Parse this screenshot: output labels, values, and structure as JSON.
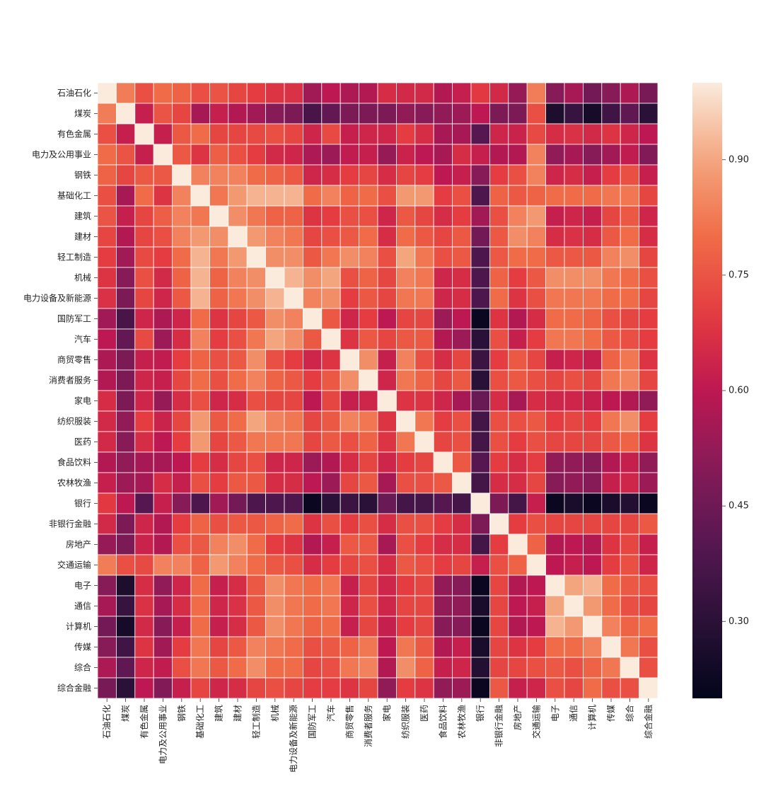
{
  "chart_data": {
    "type": "heatmap",
    "title": "",
    "xlabel": "",
    "ylabel": "",
    "labels": [
      "石油石化",
      "煤炭",
      "有色金属",
      "电力及公用事业",
      "钢铁",
      "基础化工",
      "建筑",
      "建材",
      "轻工制造",
      "机械",
      "电力设备及新能源",
      "国防军工",
      "汽车",
      "商贸零售",
      "消费者服务",
      "家电",
      "纺织服装",
      "医药",
      "食品饮料",
      "农林牧渔",
      "银行",
      "非银行金融",
      "房地产",
      "交通运输",
      "电子",
      "通信",
      "计算机",
      "传媒",
      "综合",
      "综合金融"
    ],
    "values": [
      [
        1.0,
        0.83,
        0.74,
        0.8,
        0.78,
        0.74,
        0.75,
        0.72,
        0.7,
        0.68,
        0.67,
        0.55,
        0.6,
        0.57,
        0.58,
        0.66,
        0.65,
        0.65,
        0.58,
        0.62,
        0.69,
        0.65,
        0.53,
        0.83,
        0.5,
        0.56,
        0.46,
        0.5,
        0.57,
        0.47
      ],
      [
        0.83,
        1.0,
        0.62,
        0.75,
        0.72,
        0.56,
        0.62,
        0.58,
        0.55,
        0.5,
        0.48,
        0.37,
        0.43,
        0.48,
        0.48,
        0.48,
        0.52,
        0.5,
        0.52,
        0.54,
        0.6,
        0.48,
        0.48,
        0.74,
        0.27,
        0.33,
        0.25,
        0.35,
        0.42,
        0.3
      ],
      [
        0.74,
        0.62,
        1.0,
        0.62,
        0.76,
        0.8,
        0.72,
        0.72,
        0.73,
        0.74,
        0.72,
        0.64,
        0.73,
        0.62,
        0.64,
        0.64,
        0.7,
        0.66,
        0.56,
        0.56,
        0.4,
        0.64,
        0.63,
        0.73,
        0.66,
        0.67,
        0.65,
        0.68,
        0.64,
        0.6
      ],
      [
        0.8,
        0.75,
        0.62,
        1.0,
        0.76,
        0.68,
        0.77,
        0.74,
        0.7,
        0.65,
        0.64,
        0.57,
        0.54,
        0.61,
        0.62,
        0.53,
        0.63,
        0.6,
        0.56,
        0.66,
        0.62,
        0.58,
        0.58,
        0.84,
        0.52,
        0.56,
        0.5,
        0.55,
        0.61,
        0.49
      ],
      [
        0.78,
        0.72,
        0.76,
        0.76,
        1.0,
        0.84,
        0.84,
        0.84,
        0.8,
        0.78,
        0.76,
        0.64,
        0.66,
        0.7,
        0.72,
        0.66,
        0.72,
        0.7,
        0.6,
        0.62,
        0.5,
        0.7,
        0.74,
        0.84,
        0.64,
        0.66,
        0.62,
        0.7,
        0.74,
        0.62
      ],
      [
        0.74,
        0.56,
        0.8,
        0.68,
        0.84,
        1.0,
        0.82,
        0.88,
        0.92,
        0.92,
        0.92,
        0.8,
        0.84,
        0.78,
        0.8,
        0.74,
        0.88,
        0.88,
        0.7,
        0.74,
        0.38,
        0.78,
        0.76,
        0.78,
        0.8,
        0.8,
        0.8,
        0.82,
        0.82,
        0.72
      ],
      [
        0.75,
        0.62,
        0.72,
        0.77,
        0.84,
        0.82,
        1.0,
        0.86,
        0.82,
        0.78,
        0.78,
        0.68,
        0.7,
        0.74,
        0.74,
        0.64,
        0.76,
        0.72,
        0.66,
        0.7,
        0.55,
        0.74,
        0.84,
        0.88,
        0.62,
        0.64,
        0.62,
        0.72,
        0.76,
        0.64
      ],
      [
        0.72,
        0.58,
        0.72,
        0.74,
        0.84,
        0.88,
        0.86,
        1.0,
        0.88,
        0.84,
        0.82,
        0.72,
        0.74,
        0.76,
        0.8,
        0.66,
        0.8,
        0.76,
        0.72,
        0.76,
        0.46,
        0.76,
        0.86,
        0.84,
        0.66,
        0.67,
        0.66,
        0.76,
        0.8,
        0.66
      ],
      [
        0.7,
        0.55,
        0.73,
        0.7,
        0.8,
        0.92,
        0.82,
        0.88,
        1.0,
        0.86,
        0.86,
        0.76,
        0.82,
        0.86,
        0.84,
        0.74,
        0.9,
        0.82,
        0.74,
        0.76,
        0.38,
        0.76,
        0.8,
        0.8,
        0.76,
        0.76,
        0.76,
        0.84,
        0.86,
        0.72
      ],
      [
        0.68,
        0.5,
        0.74,
        0.65,
        0.78,
        0.92,
        0.78,
        0.84,
        0.86,
        1.0,
        0.92,
        0.86,
        0.9,
        0.74,
        0.78,
        0.72,
        0.84,
        0.82,
        0.64,
        0.66,
        0.38,
        0.78,
        0.7,
        0.76,
        0.86,
        0.86,
        0.86,
        0.82,
        0.8,
        0.74
      ],
      [
        0.67,
        0.48,
        0.72,
        0.64,
        0.76,
        0.92,
        0.78,
        0.82,
        0.86,
        0.92,
        1.0,
        0.84,
        0.86,
        0.7,
        0.76,
        0.72,
        0.82,
        0.82,
        0.64,
        0.66,
        0.38,
        0.8,
        0.68,
        0.74,
        0.82,
        0.82,
        0.82,
        0.8,
        0.8,
        0.72
      ],
      [
        0.55,
        0.37,
        0.64,
        0.57,
        0.64,
        0.8,
        0.68,
        0.72,
        0.76,
        0.86,
        0.84,
        1.0,
        0.76,
        0.64,
        0.7,
        0.6,
        0.72,
        0.72,
        0.54,
        0.6,
        0.22,
        0.68,
        0.58,
        0.66,
        0.8,
        0.8,
        0.78,
        0.74,
        0.72,
        0.7
      ],
      [
        0.6,
        0.43,
        0.73,
        0.54,
        0.66,
        0.84,
        0.7,
        0.74,
        0.82,
        0.9,
        0.86,
        0.76,
        1.0,
        0.68,
        0.76,
        0.72,
        0.76,
        0.76,
        0.58,
        0.54,
        0.3,
        0.74,
        0.62,
        0.7,
        0.82,
        0.82,
        0.8,
        0.76,
        0.74,
        0.7
      ],
      [
        0.57,
        0.48,
        0.62,
        0.61,
        0.7,
        0.78,
        0.74,
        0.76,
        0.86,
        0.74,
        0.7,
        0.64,
        0.68,
        1.0,
        0.86,
        0.62,
        0.84,
        0.74,
        0.66,
        0.72,
        0.34,
        0.7,
        0.76,
        0.72,
        0.62,
        0.64,
        0.62,
        0.78,
        0.82,
        0.68
      ],
      [
        0.58,
        0.48,
        0.64,
        0.62,
        0.72,
        0.8,
        0.74,
        0.8,
        0.84,
        0.78,
        0.76,
        0.7,
        0.76,
        0.86,
        1.0,
        0.64,
        0.82,
        0.78,
        0.72,
        0.76,
        0.3,
        0.74,
        0.76,
        0.74,
        0.72,
        0.74,
        0.72,
        0.82,
        0.84,
        0.72
      ],
      [
        0.66,
        0.48,
        0.64,
        0.53,
        0.66,
        0.74,
        0.64,
        0.66,
        0.74,
        0.72,
        0.72,
        0.6,
        0.72,
        0.62,
        0.64,
        1.0,
        0.68,
        0.68,
        0.64,
        0.56,
        0.44,
        0.66,
        0.56,
        0.66,
        0.64,
        0.64,
        0.62,
        0.6,
        0.58,
        0.52
      ],
      [
        0.65,
        0.52,
        0.7,
        0.63,
        0.72,
        0.88,
        0.76,
        0.8,
        0.9,
        0.84,
        0.82,
        0.72,
        0.76,
        0.84,
        0.82,
        0.68,
        1.0,
        0.82,
        0.7,
        0.74,
        0.36,
        0.74,
        0.74,
        0.76,
        0.7,
        0.72,
        0.7,
        0.82,
        0.86,
        0.7
      ],
      [
        0.65,
        0.5,
        0.66,
        0.6,
        0.7,
        0.88,
        0.72,
        0.76,
        0.82,
        0.82,
        0.82,
        0.72,
        0.76,
        0.74,
        0.78,
        0.68,
        0.82,
        1.0,
        0.72,
        0.74,
        0.36,
        0.74,
        0.7,
        0.74,
        0.72,
        0.72,
        0.72,
        0.76,
        0.78,
        0.68
      ],
      [
        0.58,
        0.52,
        0.56,
        0.56,
        0.6,
        0.7,
        0.66,
        0.72,
        0.74,
        0.64,
        0.64,
        0.54,
        0.58,
        0.66,
        0.72,
        0.64,
        0.7,
        0.72,
        1.0,
        0.76,
        0.4,
        0.7,
        0.66,
        0.7,
        0.52,
        0.52,
        0.5,
        0.58,
        0.62,
        0.52
      ],
      [
        0.62,
        0.54,
        0.56,
        0.66,
        0.62,
        0.74,
        0.7,
        0.76,
        0.76,
        0.66,
        0.66,
        0.6,
        0.54,
        0.72,
        0.76,
        0.56,
        0.74,
        0.74,
        0.76,
        1.0,
        0.36,
        0.66,
        0.66,
        0.72,
        0.5,
        0.52,
        0.5,
        0.62,
        0.64,
        0.54
      ],
      [
        0.69,
        0.6,
        0.4,
        0.62,
        0.5,
        0.38,
        0.55,
        0.46,
        0.38,
        0.38,
        0.38,
        0.22,
        0.3,
        0.34,
        0.3,
        0.44,
        0.36,
        0.36,
        0.4,
        0.36,
        1.0,
        0.48,
        0.36,
        0.62,
        0.22,
        0.26,
        0.22,
        0.26,
        0.28,
        0.22
      ],
      [
        0.65,
        0.48,
        0.64,
        0.58,
        0.7,
        0.78,
        0.74,
        0.76,
        0.76,
        0.78,
        0.8,
        0.68,
        0.74,
        0.7,
        0.74,
        0.66,
        0.74,
        0.74,
        0.7,
        0.66,
        0.48,
        1.0,
        0.7,
        0.74,
        0.72,
        0.72,
        0.72,
        0.72,
        0.72,
        0.76
      ],
      [
        0.53,
        0.48,
        0.63,
        0.58,
        0.74,
        0.76,
        0.84,
        0.86,
        0.8,
        0.7,
        0.68,
        0.58,
        0.62,
        0.76,
        0.76,
        0.56,
        0.74,
        0.7,
        0.66,
        0.66,
        0.36,
        0.7,
        1.0,
        0.78,
        0.58,
        0.6,
        0.58,
        0.68,
        0.72,
        0.62
      ],
      [
        0.83,
        0.74,
        0.73,
        0.84,
        0.84,
        0.78,
        0.88,
        0.84,
        0.8,
        0.76,
        0.74,
        0.66,
        0.7,
        0.72,
        0.74,
        0.66,
        0.76,
        0.74,
        0.7,
        0.72,
        0.62,
        0.74,
        0.78,
        1.0,
        0.6,
        0.62,
        0.6,
        0.7,
        0.74,
        0.64
      ],
      [
        0.5,
        0.27,
        0.66,
        0.52,
        0.64,
        0.8,
        0.62,
        0.66,
        0.76,
        0.86,
        0.82,
        0.8,
        0.82,
        0.62,
        0.72,
        0.64,
        0.7,
        0.72,
        0.52,
        0.5,
        0.22,
        0.72,
        0.58,
        0.6,
        1.0,
        0.9,
        0.92,
        0.8,
        0.76,
        0.74
      ],
      [
        0.56,
        0.33,
        0.67,
        0.56,
        0.66,
        0.8,
        0.64,
        0.67,
        0.76,
        0.86,
        0.82,
        0.8,
        0.82,
        0.64,
        0.74,
        0.64,
        0.72,
        0.72,
        0.52,
        0.52,
        0.26,
        0.72,
        0.6,
        0.62,
        0.9,
        1.0,
        0.88,
        0.8,
        0.74,
        0.72
      ],
      [
        0.46,
        0.25,
        0.65,
        0.5,
        0.62,
        0.8,
        0.62,
        0.66,
        0.76,
        0.86,
        0.82,
        0.78,
        0.8,
        0.62,
        0.72,
        0.62,
        0.7,
        0.72,
        0.5,
        0.5,
        0.22,
        0.72,
        0.58,
        0.6,
        0.92,
        0.88,
        1.0,
        0.84,
        0.78,
        0.8
      ],
      [
        0.5,
        0.35,
        0.68,
        0.55,
        0.7,
        0.82,
        0.72,
        0.76,
        0.84,
        0.82,
        0.8,
        0.74,
        0.76,
        0.78,
        0.82,
        0.6,
        0.82,
        0.76,
        0.58,
        0.62,
        0.26,
        0.72,
        0.68,
        0.7,
        0.8,
        0.8,
        0.84,
        1.0,
        0.82,
        0.74
      ],
      [
        0.57,
        0.42,
        0.64,
        0.61,
        0.74,
        0.82,
        0.76,
        0.8,
        0.86,
        0.8,
        0.8,
        0.72,
        0.74,
        0.82,
        0.84,
        0.58,
        0.86,
        0.78,
        0.62,
        0.64,
        0.28,
        0.72,
        0.72,
        0.74,
        0.76,
        0.74,
        0.78,
        0.82,
        1.0,
        0.74
      ],
      [
        0.47,
        0.3,
        0.6,
        0.49,
        0.62,
        0.72,
        0.64,
        0.66,
        0.72,
        0.74,
        0.72,
        0.7,
        0.7,
        0.68,
        0.72,
        0.52,
        0.7,
        0.68,
        0.52,
        0.54,
        0.22,
        0.76,
        0.62,
        0.64,
        0.74,
        0.72,
        0.8,
        0.74,
        0.74,
        1.0
      ]
    ],
    "colorbar": {
      "range": [
        0.2,
        1.0
      ],
      "ticks": [
        0.3,
        0.45,
        0.6,
        0.75,
        0.9
      ],
      "tick_labels": [
        "0.30",
        "0.45",
        "0.60",
        "0.75",
        "0.90"
      ],
      "colormap": "rocket"
    },
    "grid": true,
    "legend": "colorbar-right"
  }
}
